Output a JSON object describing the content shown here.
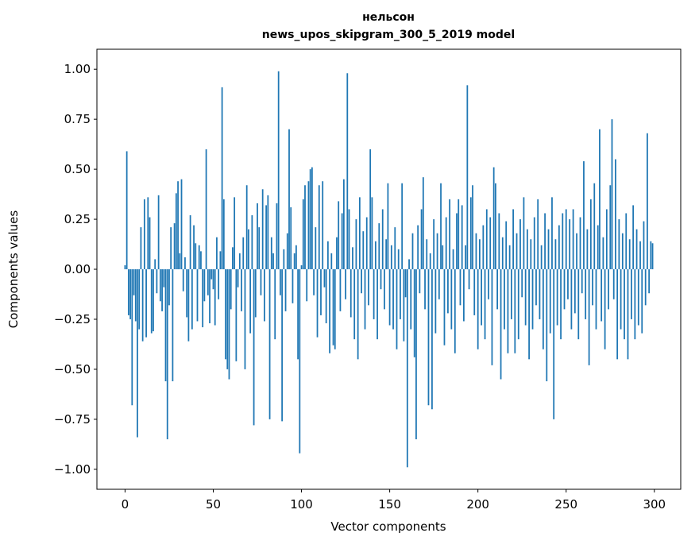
{
  "chart_data": {
    "type": "bar",
    "title_lines": [
      "нельсон",
      "news_upos_skipgram_300_5_2019 model"
    ],
    "xlabel": "Vector components",
    "ylabel": "Components values",
    "bar_color": "#1f77b4",
    "bar_width": 0.8,
    "x_start": 0,
    "xlim": [
      -15.95,
      314.95
    ],
    "ylim": [
      -1.1,
      1.1
    ],
    "xticks": [
      0,
      50,
      100,
      150,
      200,
      250,
      300
    ],
    "xtick_labels": [
      "0",
      "50",
      "100",
      "150",
      "200",
      "250",
      "300"
    ],
    "yticks": [
      1.0,
      0.75,
      0.5,
      0.25,
      0.0,
      -0.25,
      -0.5,
      -0.75,
      -1.0
    ],
    "ytick_labels": [
      "1.00",
      "0.75",
      "0.50",
      "0.25",
      "0.00",
      "−0.25",
      "−0.50",
      "−0.75",
      "−1.00"
    ],
    "grid": false,
    "legend": null,
    "values": [
      0.02,
      0.59,
      -0.23,
      -0.25,
      -0.68,
      -0.13,
      -0.26,
      -0.84,
      -0.3,
      0.21,
      -0.36,
      0.35,
      -0.34,
      0.36,
      0.26,
      -0.32,
      -0.31,
      0.05,
      -0.12,
      0.37,
      -0.16,
      -0.21,
      -0.09,
      -0.56,
      -0.85,
      -0.18,
      0.21,
      -0.56,
      0.23,
      0.38,
      0.44,
      0.08,
      0.45,
      -0.11,
      0.06,
      -0.24,
      -0.36,
      0.27,
      -0.3,
      0.22,
      0.13,
      -0.26,
      0.12,
      0.09,
      -0.29,
      -0.16,
      0.6,
      -0.13,
      -0.27,
      -0.05,
      -0.1,
      -0.28,
      0.16,
      -0.15,
      0.09,
      0.91,
      0.35,
      -0.45,
      -0.5,
      -0.55,
      -0.2,
      0.11,
      0.36,
      -0.46,
      -0.09,
      0.08,
      -0.21,
      0.16,
      -0.5,
      0.42,
      0.2,
      -0.32,
      0.27,
      -0.78,
      -0.24,
      0.33,
      0.21,
      -0.13,
      0.4,
      -0.26,
      0.32,
      0.37,
      -0.75,
      0.16,
      0.08,
      -0.35,
      0.33,
      0.99,
      -0.13,
      -0.76,
      0.1,
      -0.21,
      0.18,
      0.7,
      0.31,
      -0.17,
      0.08,
      0.12,
      -0.45,
      -0.92,
      0.02,
      0.35,
      0.42,
      -0.16,
      0.44,
      0.5,
      0.51,
      -0.13,
      0.21,
      -0.34,
      0.42,
      -0.23,
      0.44,
      -0.09,
      -0.27,
      0.14,
      -0.42,
      0.08,
      -0.38,
      -0.4,
      0.16,
      0.34,
      -0.21,
      0.28,
      0.45,
      -0.15,
      0.98,
      0.3,
      -0.24,
      0.11,
      -0.35,
      0.25,
      -0.45,
      0.36,
      -0.12,
      0.19,
      -0.3,
      0.26,
      -0.18,
      0.6,
      0.36,
      -0.25,
      0.14,
      -0.35,
      0.23,
      -0.1,
      0.3,
      -0.2,
      0.15,
      0.43,
      -0.28,
      0.12,
      -0.3,
      0.21,
      -0.4,
      0.1,
      -0.25,
      0.43,
      -0.36,
      -0.14,
      -0.99,
      0.05,
      -0.3,
      0.18,
      -0.44,
      -0.85,
      0.22,
      -0.12,
      0.3,
      0.46,
      -0.2,
      0.15,
      -0.68,
      0.08,
      -0.7,
      0.25,
      -0.32,
      0.18,
      -0.15,
      0.43,
      0.12,
      -0.38,
      0.26,
      -0.22,
      0.35,
      -0.3,
      0.1,
      -0.42,
      0.28,
      0.35,
      -0.18,
      0.32,
      -0.26,
      0.12,
      0.92,
      -0.1,
      0.36,
      0.42,
      -0.23,
      0.18,
      -0.4,
      0.15,
      -0.28,
      0.22,
      -0.35,
      0.3,
      -0.15,
      0.26,
      -0.48,
      0.51,
      0.43,
      -0.2,
      0.28,
      -0.55,
      0.16,
      -0.3,
      0.24,
      -0.42,
      0.12,
      -0.25,
      0.3,
      -0.42,
      0.18,
      -0.35,
      0.25,
      -0.14,
      0.36,
      -0.28,
      0.2,
      -0.45,
      0.15,
      -0.3,
      0.26,
      -0.18,
      0.35,
      -0.25,
      0.12,
      -0.4,
      0.28,
      -0.56,
      0.2,
      -0.32,
      0.36,
      -0.75,
      0.15,
      -0.28,
      0.22,
      -0.35,
      0.28,
      -0.2,
      0.3,
      -0.15,
      0.25,
      -0.3,
      0.3,
      -0.22,
      0.18,
      -0.35,
      0.26,
      -0.12,
      0.54,
      -0.25,
      0.2,
      -0.48,
      0.35,
      -0.18,
      0.43,
      -0.3,
      0.22,
      0.7,
      -0.26,
      0.16,
      -0.4,
      0.3,
      -0.2,
      0.42,
      0.75,
      -0.15,
      0.55,
      -0.45,
      0.25,
      -0.3,
      0.18,
      -0.35,
      0.28,
      -0.45,
      0.15,
      -0.25,
      0.32,
      -0.35,
      0.2,
      -0.28,
      0.14,
      -0.32,
      0.24,
      -0.18,
      0.68,
      -0.12,
      0.14,
      0.13
    ]
  }
}
